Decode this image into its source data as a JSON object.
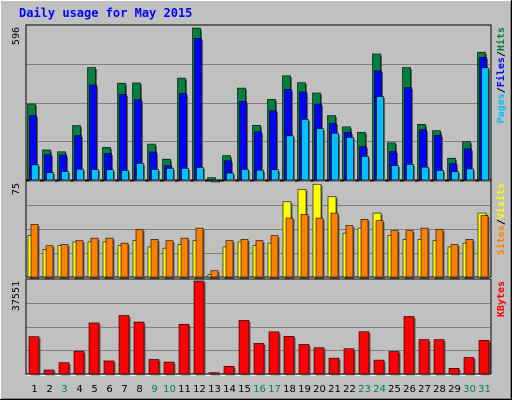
{
  "title": "Daily usage for May 2015",
  "colors": {
    "background": "#c0c0c0",
    "plot_bg": "#c0c0c0",
    "grid": "#808080",
    "hits": "#008040",
    "files": "#0000ff",
    "pages": "#00c0ff",
    "visits": "#ffff00",
    "sites": "#ff8000",
    "kbytes": "#ff0000",
    "title": "#0000ff",
    "day_weekday": "#000000",
    "day_weekend": "#00805c"
  },
  "chart_data": [
    {
      "type": "bar",
      "name": "hits-files-pages",
      "y_max_label": "596",
      "ylim": [
        0,
        596
      ],
      "grid": true,
      "legend": [
        {
          "text": "Pages",
          "color": "#00c0ff"
        },
        {
          "text": "/",
          "color": "#000000"
        },
        {
          "text": "Files",
          "color": "#0000ff"
        },
        {
          "text": "/",
          "color": "#000000"
        },
        {
          "text": "Hits",
          "color": "#008040"
        }
      ],
      "categories": [
        "1",
        "2",
        "3",
        "4",
        "5",
        "6",
        "7",
        "8",
        "9",
        "10",
        "11",
        "12",
        "13",
        "14",
        "15",
        "16",
        "17",
        "18",
        "19",
        "20",
        "21",
        "22",
        "23",
        "24",
        "25",
        "26",
        "27",
        "28",
        "29",
        "30",
        "31"
      ],
      "series": [
        {
          "key": "hits",
          "values": [
            296,
            117,
            110,
            212,
            438,
            127,
            377,
            378,
            140,
            81,
            397,
            592,
            9,
            95,
            358,
            213,
            314,
            406,
            379,
            339,
            251,
            207,
            186,
            491,
            145,
            438,
            217,
            192,
            85,
            149,
            498
          ]
        },
        {
          "key": "files",
          "values": [
            251,
            98,
            97,
            173,
            370,
            103,
            333,
            313,
            109,
            56,
            337,
            552,
            0,
            75,
            306,
            188,
            270,
            353,
            343,
            296,
            220,
            185,
            130,
            425,
            111,
            360,
            196,
            174,
            64,
            121,
            478
          ]
        },
        {
          "key": "pages",
          "values": [
            59,
            29,
            33,
            42,
            41,
            40,
            37,
            65,
            41,
            45,
            45,
            49,
            0,
            27,
            41,
            38,
            40,
            172,
            236,
            200,
            182,
            166,
            92,
            325,
            56,
            61,
            50,
            37,
            32,
            43,
            437
          ]
        }
      ]
    },
    {
      "type": "bar",
      "name": "visits-sites",
      "y_max_label": "75",
      "ylim": [
        0,
        75
      ],
      "grid": true,
      "legend": [
        {
          "text": "Sites",
          "color": "#ff8000"
        },
        {
          "text": "/",
          "color": "#000000"
        },
        {
          "text": "Visits",
          "color": "#ffff00"
        }
      ],
      "categories": [
        "1",
        "2",
        "3",
        "4",
        "5",
        "6",
        "7",
        "8",
        "9",
        "10",
        "11",
        "12",
        "13",
        "14",
        "15",
        "16",
        "17",
        "18",
        "19",
        "20",
        "21",
        "22",
        "23",
        "24",
        "25",
        "26",
        "27",
        "28",
        "29",
        "30",
        "31"
      ],
      "series": [
        {
          "key": "visits",
          "values": [
            33,
            22,
            25,
            28,
            28,
            28,
            25,
            29,
            24,
            23,
            26,
            29,
            2,
            24,
            28,
            25,
            27,
            60,
            70,
            74,
            64,
            35,
            39,
            51,
            33,
            30,
            30,
            29,
            24,
            27,
            51
          ]
        },
        {
          "key": "sites",
          "values": [
            42,
            25,
            26,
            29,
            31,
            31,
            27,
            38,
            30,
            29,
            31,
            39,
            5,
            29,
            30,
            29,
            33,
            47,
            50,
            47,
            51,
            41,
            46,
            45,
            37,
            37,
            39,
            38,
            26,
            30,
            49
          ]
        }
      ]
    },
    {
      "type": "bar",
      "name": "kbytes",
      "y_max_label": "37551",
      "ylim": [
        0,
        37551
      ],
      "grid": true,
      "legend": [
        {
          "text": "KBytes",
          "color": "#ff0000"
        }
      ],
      "categories": [
        "1",
        "2",
        "3",
        "4",
        "5",
        "6",
        "7",
        "8",
        "9",
        "10",
        "11",
        "12",
        "13",
        "14",
        "15",
        "16",
        "17",
        "18",
        "19",
        "20",
        "21",
        "22",
        "23",
        "24",
        "25",
        "26",
        "27",
        "28",
        "29",
        "30",
        "31"
      ],
      "series": [
        {
          "key": "kbytes",
          "values": [
            15069,
            1610,
            4566,
            9224,
            20617,
            5272,
            23631,
            20975,
            5861,
            4808,
            20088,
            37551,
            537,
            3103,
            21628,
            12331,
            17032,
            15230,
            11945,
            10624,
            6405,
            10206,
            17081,
            5606,
            9084,
            23229,
            13912,
            13880,
            2300,
            6670,
            13607
          ]
        }
      ]
    }
  ],
  "x_labels": [
    {
      "text": "1",
      "weekend": false
    },
    {
      "text": "2",
      "weekend": false
    },
    {
      "text": "3",
      "weekend": true
    },
    {
      "text": "4",
      "weekend": false
    },
    {
      "text": "5",
      "weekend": false
    },
    {
      "text": "6",
      "weekend": false
    },
    {
      "text": "7",
      "weekend": false
    },
    {
      "text": "8",
      "weekend": false
    },
    {
      "text": "9",
      "weekend": true
    },
    {
      "text": "10",
      "weekend": true
    },
    {
      "text": "11",
      "weekend": false
    },
    {
      "text": "12",
      "weekend": false
    },
    {
      "text": "13",
      "weekend": false
    },
    {
      "text": "14",
      "weekend": false
    },
    {
      "text": "15",
      "weekend": false
    },
    {
      "text": "16",
      "weekend": true
    },
    {
      "text": "17",
      "weekend": true
    },
    {
      "text": "18",
      "weekend": false
    },
    {
      "text": "19",
      "weekend": false
    },
    {
      "text": "20",
      "weekend": false
    },
    {
      "text": "21",
      "weekend": false
    },
    {
      "text": "22",
      "weekend": false
    },
    {
      "text": "23",
      "weekend": true
    },
    {
      "text": "24",
      "weekend": true
    },
    {
      "text": "25",
      "weekend": false
    },
    {
      "text": "26",
      "weekend": false
    },
    {
      "text": "27",
      "weekend": false
    },
    {
      "text": "28",
      "weekend": false
    },
    {
      "text": "29",
      "weekend": false
    },
    {
      "text": "30",
      "weekend": true
    },
    {
      "text": "31",
      "weekend": true
    }
  ]
}
